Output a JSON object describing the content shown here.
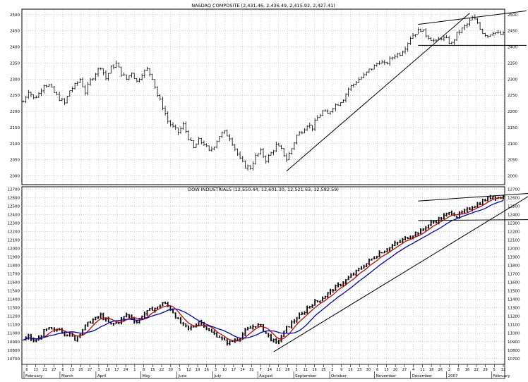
{
  "chart_data": [
    {
      "type": "ohlc",
      "title": "NASDAQ COMPOSITE (2,431.46, 2,436.49, 2,415.92, 2,427.41)",
      "ylim": [
        1975,
        2515
      ],
      "yticks": [
        2000,
        2050,
        2100,
        2150,
        2200,
        2250,
        2300,
        2350,
        2400,
        2450,
        2500
      ],
      "tick_step": 5,
      "path": [
        [
          0,
          2230
        ],
        [
          2,
          2265
        ],
        [
          4,
          2240
        ],
        [
          6,
          2255
        ],
        [
          8,
          2285
        ],
        [
          10,
          2280
        ],
        [
          12,
          2258
        ],
        [
          14,
          2240
        ],
        [
          16,
          2225
        ],
        [
          18,
          2265
        ],
        [
          20,
          2280
        ],
        [
          22,
          2300
        ],
        [
          24,
          2260
        ],
        [
          26,
          2295
        ],
        [
          28,
          2320
        ],
        [
          30,
          2340
        ],
        [
          32,
          2302
        ],
        [
          34,
          2335
        ],
        [
          36,
          2348
        ],
        [
          38,
          2318
        ],
        [
          40,
          2300
        ],
        [
          42,
          2322
        ],
        [
          44,
          2292
        ],
        [
          46,
          2318
        ],
        [
          48,
          2330
        ],
        [
          50,
          2305
        ],
        [
          52,
          2250
        ],
        [
          54,
          2215
        ],
        [
          56,
          2170
        ],
        [
          58,
          2150
        ],
        [
          60,
          2135
        ],
        [
          62,
          2158
        ],
        [
          64,
          2120
        ],
        [
          66,
          2085
        ],
        [
          68,
          2110
        ],
        [
          70,
          2100
        ],
        [
          72,
          2075
        ],
        [
          74,
          2095
        ],
        [
          76,
          2125
        ],
        [
          78,
          2135
        ],
        [
          80,
          2120
        ],
        [
          82,
          2085
        ],
        [
          84,
          2050
        ],
        [
          86,
          2030
        ],
        [
          88,
          2025
        ],
        [
          90,
          2060
        ],
        [
          92,
          2075
        ],
        [
          94,
          2050
        ],
        [
          96,
          2070
        ],
        [
          98,
          2095
        ],
        [
          100,
          2080
        ],
        [
          102,
          2052
        ],
        [
          104,
          2085
        ],
        [
          106,
          2125
        ],
        [
          108,
          2140
        ],
        [
          110,
          2160
        ],
        [
          112,
          2150
        ],
        [
          114,
          2180
        ],
        [
          116,
          2200
        ],
        [
          118,
          2190
        ],
        [
          120,
          2215
        ],
        [
          122,
          2225
        ],
        [
          124,
          2240
        ],
        [
          126,
          2270
        ],
        [
          128,
          2285
        ],
        [
          130,
          2300
        ],
        [
          132,
          2310
        ],
        [
          134,
          2328
        ],
        [
          136,
          2340
        ],
        [
          138,
          2356
        ],
        [
          140,
          2345
        ],
        [
          142,
          2360
        ],
        [
          144,
          2375
        ],
        [
          146,
          2380
        ],
        [
          148,
          2400
        ],
        [
          150,
          2430
        ],
        [
          152,
          2445
        ],
        [
          154,
          2455
        ],
        [
          156,
          2438
        ],
        [
          158,
          2425
        ],
        [
          160,
          2415
        ],
        [
          162,
          2430
        ],
        [
          164,
          2422
        ],
        [
          166,
          2410
        ],
        [
          168,
          2440
        ],
        [
          170,
          2455
        ],
        [
          172,
          2470
        ],
        [
          174,
          2490
        ],
        [
          176,
          2475
        ],
        [
          178,
          2445
        ],
        [
          180,
          2435
        ],
        [
          182,
          2448
        ],
        [
          184,
          2440
        ],
        [
          186,
          2438
        ]
      ],
      "trendlines": [
        {
          "name": "uptrend",
          "from": [
            102,
            2015
          ],
          "to": [
            173,
            2505
          ]
        },
        {
          "name": "channel-top",
          "from": [
            153,
            2470
          ],
          "to": [
            195,
            2512
          ]
        },
        {
          "name": "channel-bottom",
          "from": [
            153,
            2405
          ],
          "to": [
            195,
            2405
          ]
        }
      ]
    },
    {
      "type": "ohlc",
      "title": "DOW INDUSTRIALS (12,550.44, 12,601.30, 12,521.63, 12,582.59)",
      "ylim": [
        10640,
        12720
      ],
      "yticks": [
        10700,
        10800,
        10900,
        11000,
        11100,
        11200,
        11300,
        11400,
        11500,
        11600,
        11700,
        11800,
        11900,
        12000,
        12100,
        12200,
        12300,
        12400,
        12500,
        12600,
        12700
      ],
      "tick_step": 100,
      "path": [
        [
          0,
          10920
        ],
        [
          2,
          10960
        ],
        [
          4,
          10900
        ],
        [
          6,
          10940
        ],
        [
          8,
          11020
        ],
        [
          10,
          11050
        ],
        [
          12,
          11020
        ],
        [
          14,
          11060
        ],
        [
          16,
          11000
        ],
        [
          18,
          10980
        ],
        [
          20,
          10930
        ],
        [
          22,
          11010
        ],
        [
          24,
          11080
        ],
        [
          26,
          11140
        ],
        [
          28,
          11170
        ],
        [
          30,
          11210
        ],
        [
          32,
          11150
        ],
        [
          34,
          11100
        ],
        [
          36,
          11120
        ],
        [
          38,
          11160
        ],
        [
          40,
          11220
        ],
        [
          42,
          11180
        ],
        [
          44,
          11130
        ],
        [
          46,
          11210
        ],
        [
          48,
          11250
        ],
        [
          50,
          11290
        ],
        [
          52,
          11300
        ],
        [
          54,
          11360
        ],
        [
          56,
          11320
        ],
        [
          58,
          11250
        ],
        [
          60,
          11150
        ],
        [
          62,
          11090
        ],
        [
          64,
          11050
        ],
        [
          66,
          11080
        ],
        [
          68,
          11140
        ],
        [
          70,
          11100
        ],
        [
          72,
          11020
        ],
        [
          74,
          10990
        ],
        [
          76,
          10960
        ],
        [
          78,
          10900
        ],
        [
          80,
          10890
        ],
        [
          82,
          10920
        ],
        [
          84,
          10960
        ],
        [
          86,
          11020
        ],
        [
          88,
          11060
        ],
        [
          90,
          11100
        ],
        [
          92,
          11080
        ],
        [
          94,
          11000
        ],
        [
          96,
          10930
        ],
        [
          98,
          10880
        ],
        [
          100,
          10960
        ],
        [
          102,
          11060
        ],
        [
          104,
          11120
        ],
        [
          106,
          11180
        ],
        [
          108,
          11220
        ],
        [
          110,
          11300
        ],
        [
          112,
          11350
        ],
        [
          114,
          11380
        ],
        [
          116,
          11420
        ],
        [
          118,
          11470
        ],
        [
          120,
          11520
        ],
        [
          122,
          11560
        ],
        [
          124,
          11600
        ],
        [
          126,
          11650
        ],
        [
          128,
          11700
        ],
        [
          130,
          11750
        ],
        [
          132,
          11800
        ],
        [
          134,
          11850
        ],
        [
          136,
          11900
        ],
        [
          138,
          11950
        ],
        [
          140,
          11980
        ],
        [
          142,
          12010
        ],
        [
          144,
          12050
        ],
        [
          146,
          12080
        ],
        [
          148,
          12120
        ],
        [
          150,
          12150
        ],
        [
          152,
          12180
        ],
        [
          154,
          12200
        ],
        [
          156,
          12260
        ],
        [
          158,
          12300
        ],
        [
          160,
          12330
        ],
        [
          162,
          12360
        ],
        [
          164,
          12400
        ],
        [
          166,
          12430
        ],
        [
          168,
          12380
        ],
        [
          170,
          12420
        ],
        [
          172,
          12450
        ],
        [
          174,
          12500
        ],
        [
          176,
          12520
        ],
        [
          178,
          12560
        ],
        [
          180,
          12590
        ],
        [
          182,
          12620
        ],
        [
          184,
          12600
        ],
        [
          186,
          12610
        ]
      ],
      "trendlines": [
        {
          "name": "uptrend",
          "from": [
            97,
            10780
          ],
          "to": [
            196,
            12620
          ]
        },
        {
          "name": "channel-top",
          "from": [
            153,
            12560
          ],
          "to": [
            196,
            12650
          ]
        },
        {
          "name": "channel-bottom",
          "from": [
            153,
            12330
          ],
          "to": [
            196,
            12340
          ]
        }
      ],
      "moving_averages": [
        {
          "name": "short-ma",
          "color": "#cc0000",
          "smoothing": 5
        },
        {
          "name": "long-ma",
          "color": "#0000cc",
          "smoothing": 12
        }
      ]
    }
  ],
  "x_axis": {
    "ticks": [
      "6",
      "13",
      "21",
      "27",
      "6",
      "13",
      "20",
      "27",
      "3",
      "10",
      "17",
      "24",
      "1",
      "8",
      "15",
      "22",
      "30",
      "5",
      "12",
      "19",
      "26",
      "3",
      "10",
      "17",
      "24",
      "31",
      "7",
      "14",
      "21",
      "28",
      "5",
      "11",
      "18",
      "25",
      "2",
      "9",
      "16",
      "23",
      "30",
      "6",
      "13",
      "20",
      "27",
      "4",
      "11",
      "18",
      "26",
      "2",
      "8",
      "16",
      "22",
      "29",
      "5",
      "12"
    ],
    "months": [
      {
        "label": "February",
        "tick": 0
      },
      {
        "label": "March",
        "tick": 4
      },
      {
        "label": "April",
        "tick": 8
      },
      {
        "label": "May",
        "tick": 13
      },
      {
        "label": "June",
        "tick": 17
      },
      {
        "label": "July",
        "tick": 21
      },
      {
        "label": "August",
        "tick": 26
      },
      {
        "label": "September",
        "tick": 30
      },
      {
        "label": "October",
        "tick": 34
      },
      {
        "label": "November",
        "tick": 39
      },
      {
        "label": "December",
        "tick": 43
      },
      {
        "label": "2007",
        "tick": 47
      },
      {
        "label": "February",
        "tick": 52
      }
    ]
  }
}
